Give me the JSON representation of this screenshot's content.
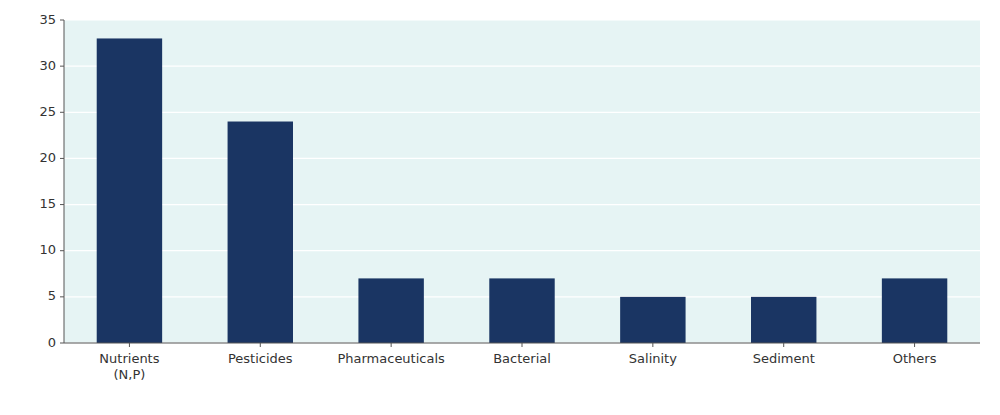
{
  "chart_data": {
    "type": "bar",
    "categories": [
      "Nutrients\n(N,P)",
      "Pesticides",
      "Pharmaceuticals",
      "Bacterial",
      "Salinity",
      "Sediment",
      "Others"
    ],
    "values": [
      33,
      24,
      7,
      7,
      5,
      5,
      7
    ],
    "color": "#1a3563",
    "ylim": [
      0,
      35
    ],
    "yticks": [
      0,
      5,
      10,
      15,
      20,
      25,
      30,
      35
    ],
    "grid": true
  }
}
